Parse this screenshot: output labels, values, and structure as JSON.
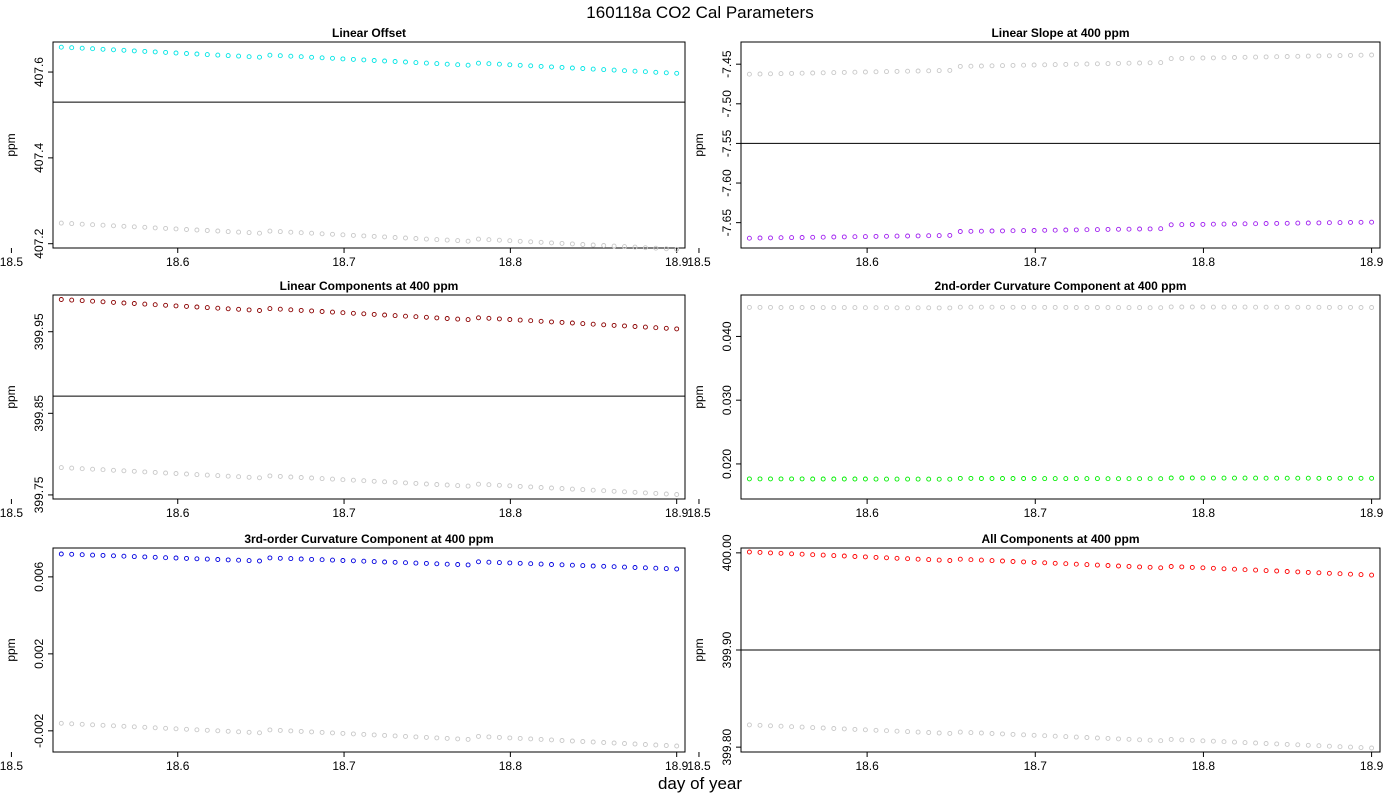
{
  "figure": {
    "title": "160118a   CO2 Cal Parameters",
    "xlabel": "day of year"
  },
  "colors": {
    "frame": "#000000",
    "reference_line": "#000000",
    "grey_points": "#c8c8c8"
  },
  "chart_data": [
    {
      "type": "scatter",
      "title": "Linear Offset",
      "ylabel": "ppm",
      "xlim": [
        18.525,
        18.905
      ],
      "ylim": [
        407.19,
        407.67
      ],
      "xticks": [
        "18.5",
        "18.6",
        "18.7",
        "18.8",
        "18.9"
      ],
      "yticks": [
        "407.2",
        "407.4",
        "407.6"
      ],
      "reference_line": 407.53,
      "series": [
        {
          "color": "#00e5e5",
          "start": 407.655,
          "end": 407.6,
          "wave": 0.01
        },
        {
          "color": "#c8c8c8",
          "start": 407.245,
          "end": 407.19,
          "wave": 0.01
        }
      ]
    },
    {
      "type": "scatter",
      "title": "Linear Slope at 400 ppm",
      "ylabel": "ppm",
      "xlim": [
        18.525,
        18.905
      ],
      "ylim": [
        -7.682,
        -7.422
      ],
      "xticks": [
        "18.5",
        "18.6",
        "18.7",
        "18.8",
        "18.9"
      ],
      "yticks": [
        "-7.45",
        "-7.50",
        "-7.55",
        "-7.60",
        "-7.65"
      ],
      "reference_line": -7.55,
      "series": [
        {
          "color": "#c8c8c8",
          "start": -7.465,
          "end": -7.436,
          "wave": 0.008
        },
        {
          "color": "#a020f0",
          "start": -7.672,
          "end": -7.647,
          "wave": 0.008
        }
      ]
    },
    {
      "type": "scatter",
      "title": "Linear Components at 400 ppm",
      "ylabel": "ppm",
      "xlim": [
        18.525,
        18.905
      ],
      "ylim": [
        399.745,
        399.995
      ],
      "xticks": [
        "18.5",
        "18.6",
        "18.7",
        "18.8",
        "18.9"
      ],
      "yticks": [
        "399.75",
        "399.85",
        "399.95"
      ],
      "reference_line": 399.871,
      "series": [
        {
          "color": "#8b0000",
          "start": 399.988,
          "end": 399.955,
          "wave": 0.005
        },
        {
          "color": "#c8c8c8",
          "start": 399.782,
          "end": 399.752,
          "wave": 0.005
        }
      ]
    },
    {
      "type": "scatter",
      "title": "2nd-order Curvature Component at 400 ppm",
      "ylabel": "ppm",
      "xlim": [
        18.525,
        18.905
      ],
      "ylim": [
        0.0145,
        0.0465
      ],
      "xticks": [
        "18.5",
        "18.6",
        "18.7",
        "18.8",
        "18.9"
      ],
      "yticks": [
        "0.020",
        "0.030",
        "0.040"
      ],
      "reference_line": null,
      "series": [
        {
          "color": "#c8c8c8",
          "start": 0.0445,
          "end": 0.0446,
          "wave": 0.0002
        },
        {
          "color": "#00ee00",
          "start": 0.0176,
          "end": 0.0178,
          "wave": 0.0002
        }
      ]
    },
    {
      "type": "scatter",
      "title": "3rd-order Curvature Component at 400 ppm",
      "ylabel": "ppm",
      "xlim": [
        18.525,
        18.905
      ],
      "ylim": [
        -0.0031,
        0.0075
      ],
      "xticks": [
        "18.5",
        "18.6",
        "18.7",
        "18.8",
        "18.9"
      ],
      "yticks": [
        "-0.002",
        "0.002",
        "0.006"
      ],
      "reference_line": null,
      "series": [
        {
          "color": "#0000e0",
          "start": 0.0071,
          "end": 0.0065,
          "wave": 0.0003
        },
        {
          "color": "#c8c8c8",
          "start": -0.0017,
          "end": -0.0027,
          "wave": 0.0003
        }
      ]
    },
    {
      "type": "scatter",
      "title": "All Components at 400 ppm",
      "ylabel": "ppm",
      "xlim": [
        18.525,
        18.905
      ],
      "ylim": [
        399.795,
        400.005
      ],
      "xticks": [
        "18.5",
        "18.6",
        "18.7",
        "18.8",
        "18.9"
      ],
      "yticks": [
        "399.80",
        "399.90",
        "400.00"
      ],
      "reference_line": 399.9,
      "series": [
        {
          "color": "#ff0000",
          "start": 400.0,
          "end": 399.978,
          "wave": 0.003
        },
        {
          "color": "#c8c8c8",
          "start": 399.822,
          "end": 399.8,
          "wave": 0.003
        }
      ]
    }
  ]
}
